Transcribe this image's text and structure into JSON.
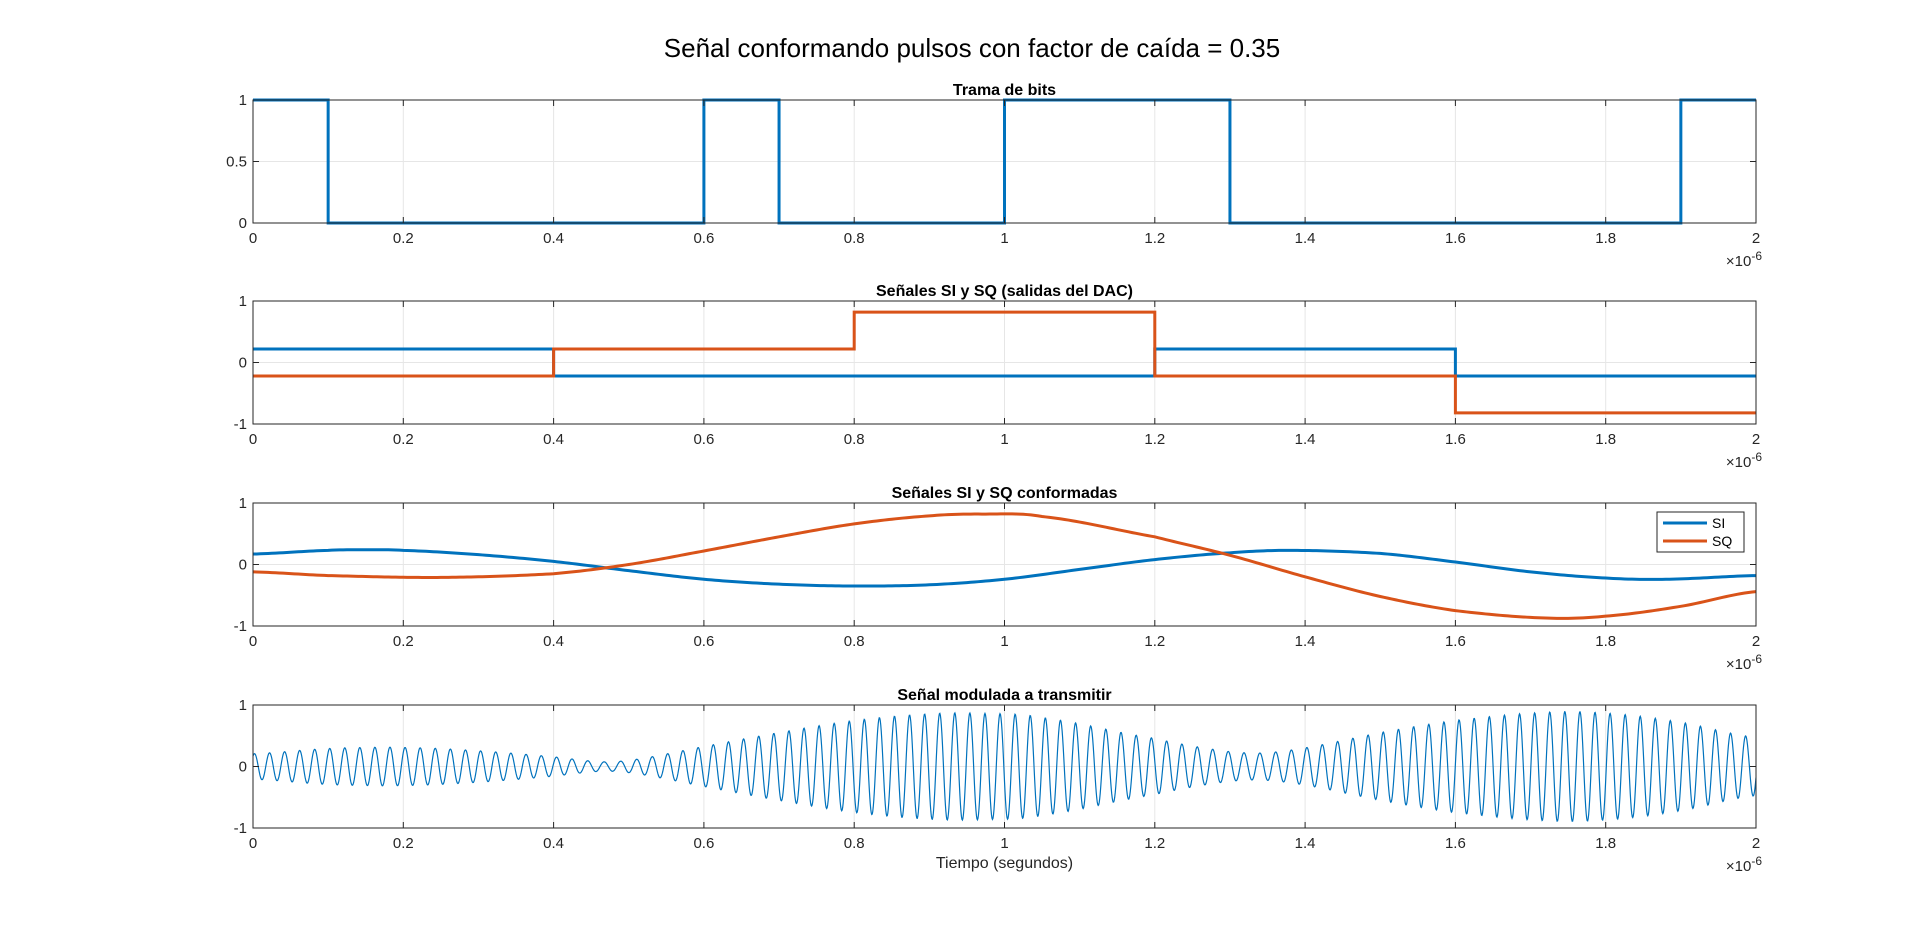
{
  "figure": {
    "suptitle": "Señal conformando pulsos con factor de caída = 0.35",
    "colors": {
      "blue": "#0072BD",
      "orange": "#D95319",
      "grid": "#e6e6e6",
      "axis": "#262626"
    }
  },
  "chart_data": [
    {
      "type": "line",
      "title": "Trama de bits",
      "xlabel": "",
      "xlim": [
        0,
        2e-06
      ],
      "ylim": [
        0,
        1
      ],
      "x_ticks": [
        "0",
        "0.2",
        "0.4",
        "0.6",
        "0.8",
        "1",
        "1.2",
        "1.4",
        "1.6",
        "1.8",
        "2"
      ],
      "y_ticks": [
        "0",
        "0.5",
        "1"
      ],
      "x_exponent": {
        "base": "×10",
        "power": "-6"
      },
      "grid": true,
      "series": [
        {
          "step": true,
          "bits": [
            1,
            0,
            0,
            0,
            0,
            0,
            1,
            0,
            0,
            0,
            1,
            1,
            1,
            0,
            0,
            0,
            0,
            0,
            0,
            1
          ],
          "bit_period": 1e-07
        }
      ]
    },
    {
      "type": "line",
      "title": "Señales SI y SQ (salidas del DAC)",
      "xlabel": "",
      "xlim": [
        0,
        2e-06
      ],
      "ylim": [
        -1,
        1
      ],
      "x_ticks": [
        "0",
        "0.2",
        "0.4",
        "0.6",
        "0.8",
        "1",
        "1.2",
        "1.4",
        "1.6",
        "1.8",
        "2"
      ],
      "y_ticks": [
        "-1",
        "0",
        "1"
      ],
      "x_exponent": {
        "base": "×10",
        "power": "-6"
      },
      "grid": true,
      "series": [
        {
          "step": true,
          "symbol_period": 4e-07,
          "values": [
            0.22,
            -0.22,
            -0.22,
            0.22,
            -0.22
          ]
        },
        {
          "step": true,
          "symbol_period": 4e-07,
          "values": [
            -0.22,
            0.22,
            0.82,
            -0.22,
            -0.82
          ]
        }
      ]
    },
    {
      "type": "line",
      "title": "Señales SI y SQ conformadas",
      "xlabel": "",
      "xlim": [
        0,
        2e-06
      ],
      "ylim": [
        -1,
        1
      ],
      "x_ticks": [
        "0",
        "0.2",
        "0.4",
        "0.6",
        "0.8",
        "1",
        "1.2",
        "1.4",
        "1.6",
        "1.8",
        "2"
      ],
      "y_ticks": [
        "-1",
        "0",
        "1"
      ],
      "x_exponent": {
        "base": "×10",
        "power": "-6"
      },
      "grid": true,
      "legend_position": "top-right",
      "series": [
        {
          "name": "SI",
          "x": [
            0,
            1e-07,
            1.5e-07,
            2e-07,
            3e-07,
            4e-07,
            5e-07,
            6e-07,
            7e-07,
            8e-07,
            9e-07,
            1e-06,
            1.1e-06,
            1.2e-06,
            1.3e-06,
            1.38e-06,
            1.5e-06,
            1.6e-06,
            1.7e-06,
            1.8e-06,
            1.88e-06,
            2e-06
          ],
          "y": [
            0.17,
            0.23,
            0.24,
            0.23,
            0.16,
            0.05,
            -0.1,
            -0.24,
            -0.32,
            -0.35,
            -0.33,
            -0.24,
            -0.08,
            0.08,
            0.19,
            0.23,
            0.18,
            0.04,
            -0.12,
            -0.22,
            -0.24,
            -0.18
          ]
        },
        {
          "name": "SQ",
          "x": [
            0,
            1e-07,
            2.5e-07,
            4e-07,
            5e-07,
            6e-07,
            7e-07,
            8e-07,
            9e-07,
            9.7e-07,
            1.05e-06,
            1.2e-06,
            1.3e-06,
            1.4e-06,
            1.5e-06,
            1.6e-06,
            1.72e-06,
            1.8e-06,
            1.9e-06,
            2e-06
          ],
          "y": [
            -0.12,
            -0.18,
            -0.21,
            -0.15,
            0.0,
            0.22,
            0.45,
            0.66,
            0.79,
            0.82,
            0.78,
            0.45,
            0.15,
            -0.2,
            -0.52,
            -0.75,
            -0.87,
            -0.84,
            -0.68,
            -0.44
          ]
        }
      ]
    },
    {
      "type": "line",
      "title": "Señal modulada a transmitir",
      "xlabel": "Tiempo (segundos)",
      "xlim": [
        0,
        2e-06
      ],
      "ylim": [
        -1,
        1
      ],
      "x_ticks": [
        "0",
        "0.2",
        "0.4",
        "0.6",
        "0.8",
        "1",
        "1.2",
        "1.4",
        "1.6",
        "1.8",
        "2"
      ],
      "y_ticks": [
        "-1",
        "0",
        "1"
      ],
      "x_exponent": {
        "base": "×10",
        "power": "-6"
      },
      "grid": true,
      "series": [
        {
          "modulated_from": [
            "SI",
            "SQ"
          ],
          "carrier_cycles": 100
        }
      ]
    }
  ]
}
